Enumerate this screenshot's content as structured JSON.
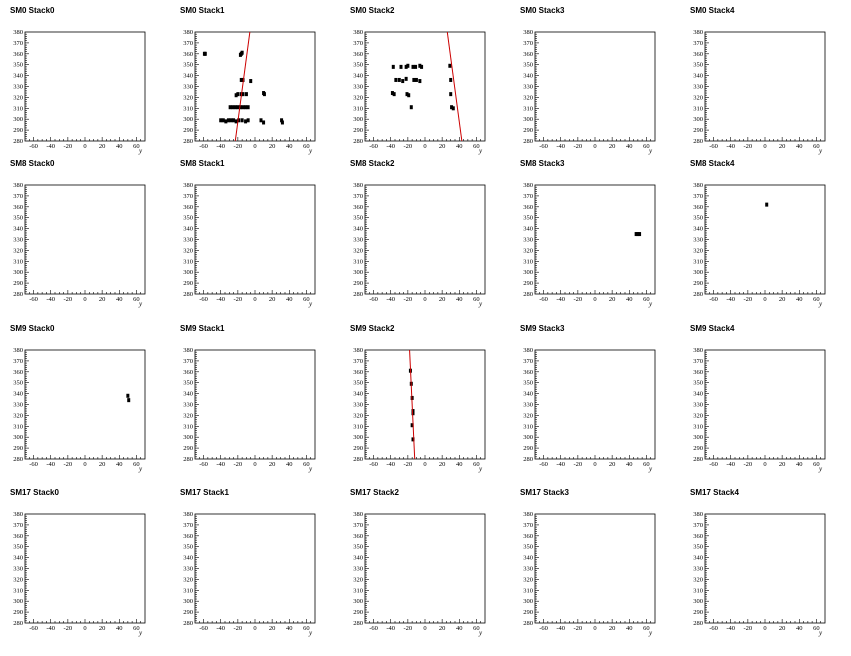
{
  "chart_data": [
    {
      "type": "scatter",
      "title": "SM0 Stack0",
      "xlabel": "y",
      "xlim": [
        -70,
        70
      ],
      "ylim": [
        280,
        380
      ],
      "xticks": [
        "-60",
        "-40",
        "-20",
        "0",
        "20",
        "40",
        "60"
      ],
      "yticks": [
        "280",
        "290",
        "300",
        "310",
        "320",
        "330",
        "340",
        "350",
        "360",
        "370",
        "380"
      ],
      "points": [],
      "fit": null
    },
    {
      "type": "scatter",
      "title": "SM0 Stack1",
      "xlabel": "y",
      "xlim": [
        -70,
        70
      ],
      "ylim": [
        280,
        380
      ],
      "xticks": [
        "-60",
        "-40",
        "-20",
        "0",
        "20",
        "40",
        "60"
      ],
      "yticks": [
        "280",
        "290",
        "300",
        "310",
        "320",
        "330",
        "340",
        "350",
        "360",
        "370",
        "380"
      ],
      "points": [
        [
          -59,
          360
        ],
        [
          -58,
          360
        ],
        [
          -17,
          359
        ],
        [
          -16,
          360
        ],
        [
          -15,
          361
        ],
        [
          -16,
          336
        ],
        [
          -14,
          336
        ],
        [
          -5,
          335
        ],
        [
          -16,
          323
        ],
        [
          -14,
          323
        ],
        [
          -20,
          323
        ],
        [
          -22,
          322
        ],
        [
          -10,
          323
        ],
        [
          10,
          324
        ],
        [
          11,
          323
        ],
        [
          -29,
          311
        ],
        [
          -26,
          311
        ],
        [
          -23,
          311
        ],
        [
          -20,
          311
        ],
        [
          -17,
          311
        ],
        [
          -14,
          311
        ],
        [
          -11,
          311
        ],
        [
          -8,
          311
        ],
        [
          -40,
          299
        ],
        [
          -37,
          299
        ],
        [
          -34,
          298
        ],
        [
          -31,
          299
        ],
        [
          -28,
          299
        ],
        [
          -25,
          299
        ],
        [
          -22,
          298
        ],
        [
          -19,
          299
        ],
        [
          -15,
          299
        ],
        [
          -11,
          298
        ],
        [
          -8,
          299
        ],
        [
          7,
          299
        ],
        [
          10,
          297
        ],
        [
          31,
          299
        ],
        [
          32,
          297
        ]
      ],
      "fit": [
        [
          -23,
          280
        ],
        [
          -6,
          380
        ]
      ]
    },
    {
      "type": "scatter",
      "title": "SM0 Stack2",
      "xlabel": "y",
      "xlim": [
        -70,
        70
      ],
      "ylim": [
        280,
        380
      ],
      "xticks": [
        "-60",
        "-40",
        "-20",
        "0",
        "20",
        "40",
        "60"
      ],
      "yticks": [
        "280",
        "290",
        "300",
        "310",
        "320",
        "330",
        "340",
        "350",
        "360",
        "370",
        "380"
      ],
      "points": [
        [
          -37,
          348
        ],
        [
          -28,
          348
        ],
        [
          -22,
          348
        ],
        [
          -20,
          349
        ],
        [
          -14,
          348
        ],
        [
          -11,
          348
        ],
        [
          -6,
          349
        ],
        [
          -4,
          348
        ],
        [
          29,
          349
        ],
        [
          -34,
          336
        ],
        [
          -30,
          336
        ],
        [
          -26,
          335
        ],
        [
          -22,
          337
        ],
        [
          -13,
          336
        ],
        [
          -10,
          336
        ],
        [
          -6,
          335
        ],
        [
          30,
          336
        ],
        [
          -38,
          324
        ],
        [
          -36,
          323
        ],
        [
          -21,
          323
        ],
        [
          -19,
          322
        ],
        [
          30,
          323
        ],
        [
          -16,
          311
        ],
        [
          31,
          311
        ],
        [
          33,
          310
        ]
      ],
      "fit": [
        [
          26,
          380
        ],
        [
          43,
          280
        ]
      ]
    },
    {
      "type": "scatter",
      "title": "SM0 Stack3",
      "xlabel": "y",
      "xlim": [
        -70,
        70
      ],
      "ylim": [
        280,
        380
      ],
      "xticks": [
        "-60",
        "-40",
        "-20",
        "0",
        "20",
        "40",
        "60"
      ],
      "yticks": [
        "280",
        "290",
        "300",
        "310",
        "320",
        "330",
        "340",
        "350",
        "360",
        "370",
        "380"
      ],
      "points": [],
      "fit": null
    },
    {
      "type": "scatter",
      "title": "SM0 Stack4",
      "xlabel": "y",
      "xlim": [
        -70,
        70
      ],
      "ylim": [
        280,
        380
      ],
      "xticks": [
        "-60",
        "-40",
        "-20",
        "0",
        "20",
        "40",
        "60"
      ],
      "yticks": [
        "280",
        "290",
        "300",
        "310",
        "320",
        "330",
        "340",
        "350",
        "360",
        "370",
        "380"
      ],
      "points": [],
      "fit": null
    },
    {
      "type": "scatter",
      "title": "SM8 Stack0",
      "xlabel": "y",
      "xlim": [
        -70,
        70
      ],
      "ylim": [
        280,
        380
      ],
      "xticks": [
        "-60",
        "-40",
        "-20",
        "0",
        "20",
        "40",
        "60"
      ],
      "yticks": [
        "280",
        "290",
        "300",
        "310",
        "320",
        "330",
        "340",
        "350",
        "360",
        "370",
        "380"
      ],
      "points": [],
      "fit": null
    },
    {
      "type": "scatter",
      "title": "SM8 Stack1",
      "xlabel": "y",
      "xlim": [
        -70,
        70
      ],
      "ylim": [
        280,
        380
      ],
      "xticks": [
        "-60",
        "-40",
        "-20",
        "0",
        "20",
        "40",
        "60"
      ],
      "yticks": [
        "280",
        "290",
        "300",
        "310",
        "320",
        "330",
        "340",
        "350",
        "360",
        "370",
        "380"
      ],
      "points": [],
      "fit": null
    },
    {
      "type": "scatter",
      "title": "SM8 Stack2",
      "xlabel": "y",
      "xlim": [
        -70,
        70
      ],
      "ylim": [
        280,
        380
      ],
      "xticks": [
        "-60",
        "-40",
        "-20",
        "0",
        "20",
        "40",
        "60"
      ],
      "yticks": [
        "280",
        "290",
        "300",
        "310",
        "320",
        "330",
        "340",
        "350",
        "360",
        "370",
        "380"
      ],
      "points": [],
      "fit": null
    },
    {
      "type": "scatter",
      "title": "SM8 Stack3",
      "xlabel": "y",
      "xlim": [
        -70,
        70
      ],
      "ylim": [
        280,
        380
      ],
      "xticks": [
        "-60",
        "-40",
        "-20",
        "0",
        "20",
        "40",
        "60"
      ],
      "yticks": [
        "280",
        "290",
        "300",
        "310",
        "320",
        "330",
        "340",
        "350",
        "360",
        "370",
        "380"
      ],
      "points": [
        [
          48,
          335
        ],
        [
          50,
          335
        ],
        [
          52,
          335
        ]
      ],
      "fit": null
    },
    {
      "type": "scatter",
      "title": "SM8 Stack4",
      "xlabel": "y",
      "xlim": [
        -70,
        70
      ],
      "ylim": [
        280,
        380
      ],
      "xticks": [
        "-60",
        "-40",
        "-20",
        "0",
        "20",
        "40",
        "60"
      ],
      "yticks": [
        "280",
        "290",
        "300",
        "310",
        "320",
        "330",
        "340",
        "350",
        "360",
        "370",
        "380"
      ],
      "points": [
        [
          2,
          362
        ]
      ],
      "fit": null
    },
    {
      "type": "scatter",
      "title": "SM9 Stack0",
      "xlabel": "y",
      "xlim": [
        -70,
        70
      ],
      "ylim": [
        280,
        380
      ],
      "xticks": [
        "-60",
        "-40",
        "-20",
        "0",
        "20",
        "40",
        "60"
      ],
      "yticks": [
        "280",
        "290",
        "300",
        "310",
        "320",
        "330",
        "340",
        "350",
        "360",
        "370",
        "380"
      ],
      "points": [
        [
          50,
          338
        ],
        [
          51,
          334
        ]
      ],
      "fit": null
    },
    {
      "type": "scatter",
      "title": "SM9 Stack1",
      "xlabel": "y",
      "xlim": [
        -70,
        70
      ],
      "ylim": [
        280,
        380
      ],
      "xticks": [
        "-60",
        "-40",
        "-20",
        "0",
        "20",
        "40",
        "60"
      ],
      "yticks": [
        "280",
        "290",
        "300",
        "310",
        "320",
        "330",
        "340",
        "350",
        "360",
        "370",
        "380"
      ],
      "points": [],
      "fit": null
    },
    {
      "type": "scatter",
      "title": "SM9 Stack2",
      "xlabel": "y",
      "xlim": [
        -70,
        70
      ],
      "ylim": [
        280,
        380
      ],
      "xticks": [
        "-60",
        "-40",
        "-20",
        "0",
        "20",
        "40",
        "60"
      ],
      "yticks": [
        "280",
        "290",
        "300",
        "310",
        "320",
        "330",
        "340",
        "350",
        "360",
        "370",
        "380"
      ],
      "points": [
        [
          -17,
          361
        ],
        [
          -16,
          349
        ],
        [
          -15,
          336
        ],
        [
          -14,
          324
        ],
        [
          -14,
          322
        ],
        [
          -15,
          311
        ],
        [
          -14,
          298
        ]
      ],
      "fit": [
        [
          -18,
          380
        ],
        [
          -12,
          280
        ]
      ]
    },
    {
      "type": "scatter",
      "title": "SM9 Stack3",
      "xlabel": "y",
      "xlim": [
        -70,
        70
      ],
      "ylim": [
        280,
        380
      ],
      "xticks": [
        "-60",
        "-40",
        "-20",
        "0",
        "20",
        "40",
        "60"
      ],
      "yticks": [
        "280",
        "290",
        "300",
        "310",
        "320",
        "330",
        "340",
        "350",
        "360",
        "370",
        "380"
      ],
      "points": [],
      "fit": null
    },
    {
      "type": "scatter",
      "title": "SM9 Stack4",
      "xlabel": "y",
      "xlim": [
        -70,
        70
      ],
      "ylim": [
        280,
        380
      ],
      "xticks": [
        "-60",
        "-40",
        "-20",
        "0",
        "20",
        "40",
        "60"
      ],
      "yticks": [
        "280",
        "290",
        "300",
        "310",
        "320",
        "330",
        "340",
        "350",
        "360",
        "370",
        "380"
      ],
      "points": [],
      "fit": null
    },
    {
      "type": "scatter",
      "title": "SM17 Stack0",
      "xlabel": "y",
      "xlim": [
        -70,
        70
      ],
      "ylim": [
        280,
        380
      ],
      "xticks": [
        "-60",
        "-40",
        "-20",
        "0",
        "20",
        "40",
        "60"
      ],
      "yticks": [
        "280",
        "290",
        "300",
        "310",
        "320",
        "330",
        "340",
        "350",
        "360",
        "370",
        "380"
      ],
      "points": [],
      "fit": null
    },
    {
      "type": "scatter",
      "title": "SM17 Stack1",
      "xlabel": "y",
      "xlim": [
        -70,
        70
      ],
      "ylim": [
        280,
        380
      ],
      "xticks": [
        "-60",
        "-40",
        "-20",
        "0",
        "20",
        "40",
        "60"
      ],
      "yticks": [
        "280",
        "290",
        "300",
        "310",
        "320",
        "330",
        "340",
        "350",
        "360",
        "370",
        "380"
      ],
      "points": [],
      "fit": null
    },
    {
      "type": "scatter",
      "title": "SM17 Stack2",
      "xlabel": "y",
      "xlim": [
        -70,
        70
      ],
      "ylim": [
        280,
        380
      ],
      "xticks": [
        "-60",
        "-40",
        "-20",
        "0",
        "20",
        "40",
        "60"
      ],
      "yticks": [
        "280",
        "290",
        "300",
        "310",
        "320",
        "330",
        "340",
        "350",
        "360",
        "370",
        "380"
      ],
      "points": [],
      "fit": null
    },
    {
      "type": "scatter",
      "title": "SM17 Stack3",
      "xlabel": "y",
      "xlim": [
        -70,
        70
      ],
      "ylim": [
        280,
        380
      ],
      "xticks": [
        "-60",
        "-40",
        "-20",
        "0",
        "20",
        "40",
        "60"
      ],
      "yticks": [
        "280",
        "290",
        "300",
        "310",
        "320",
        "330",
        "340",
        "350",
        "360",
        "370",
        "380"
      ],
      "points": [],
      "fit": null
    },
    {
      "type": "scatter",
      "title": "SM17 Stack4",
      "xlabel": "y",
      "xlim": [
        -70,
        70
      ],
      "ylim": [
        280,
        380
      ],
      "xticks": [
        "-60",
        "-40",
        "-20",
        "0",
        "20",
        "40",
        "60"
      ],
      "yticks": [
        "280",
        "290",
        "300",
        "310",
        "320",
        "330",
        "340",
        "350",
        "360",
        "370",
        "380"
      ],
      "points": [],
      "fit": null
    }
  ],
  "colors": {
    "fit_line": "#cc0000",
    "marker": "#000000",
    "frame": "#000000",
    "background": "#ffffff"
  }
}
